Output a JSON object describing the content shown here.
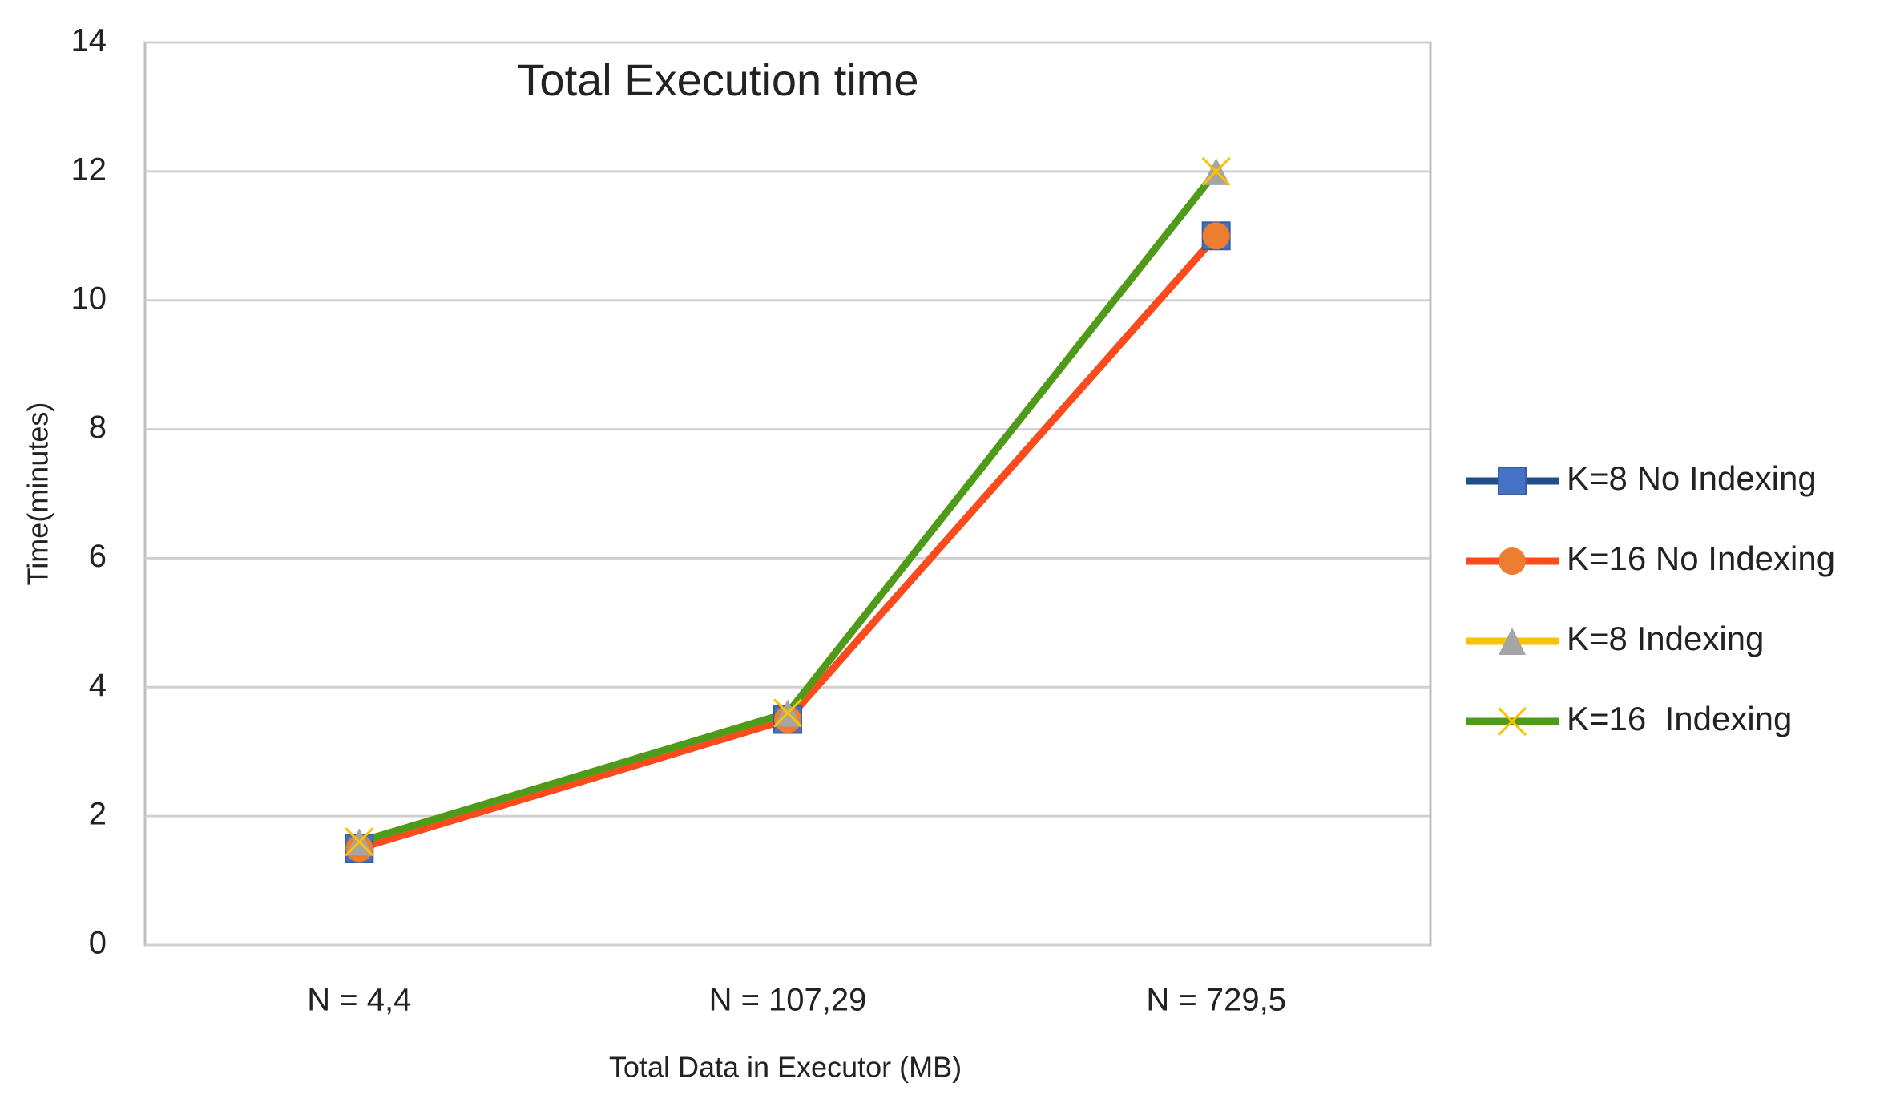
{
  "chart_data": {
    "type": "line",
    "title": "Total Execution time",
    "x_label": "Total Data in Executor (MB)",
    "y_label": "Time(minutes)",
    "categories": [
      "N = 4,4",
      "N = 107,29",
      "N = 729,5"
    ],
    "ylim": [
      0,
      14
    ],
    "yticks": [
      0,
      2,
      4,
      6,
      8,
      10,
      12,
      14
    ],
    "grid": true,
    "legend": "right",
    "series": [
      {
        "name": "K=8 No Indexing",
        "color": "#1f4e8c",
        "marker": "square",
        "marker_color": "#4472c4",
        "values": [
          1.5,
          3.5,
          11
        ]
      },
      {
        "name": "K=16 No Indexing",
        "color": "#ff4a1c",
        "marker": "diamond",
        "marker_color": "#ed7d31",
        "values": [
          1.5,
          3.5,
          11
        ]
      },
      {
        "name": "K=8 Indexing",
        "color": "#ffc000",
        "marker": "triangle",
        "marker_color": "#a5a5a5",
        "values": [
          1.6,
          3.6,
          12
        ]
      },
      {
        "name": "K=16  Indexing",
        "color": "#4e9a1a",
        "marker": "x",
        "marker_color": "#ffc000",
        "values": [
          1.6,
          3.6,
          12
        ]
      }
    ]
  }
}
